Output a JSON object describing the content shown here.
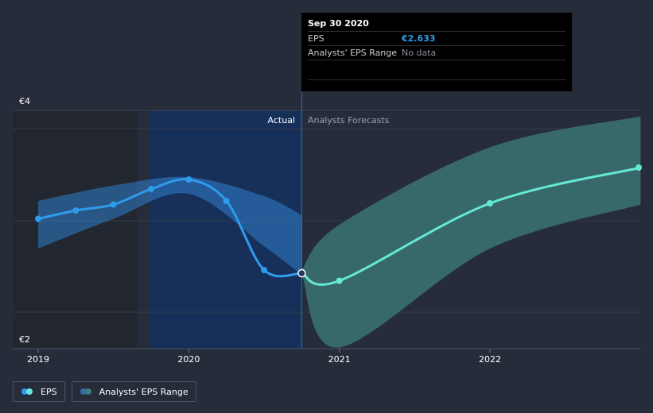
{
  "tooltip": {
    "date": "Sep 30 2020",
    "rows": [
      {
        "label": "EPS",
        "value": "€2.633"
      },
      {
        "label": "Analysts' EPS Range",
        "value": "No data"
      }
    ]
  },
  "section_labels": {
    "actual": "Actual",
    "forecast": "Analysts Forecasts"
  },
  "legend": {
    "eps_label": "EPS",
    "range_label": "Analysts' EPS Range"
  },
  "colors": {
    "background": "#262c3a",
    "eps_line": "#2f9bea",
    "forecast_line": "#66e8d6",
    "actual_band": "#2f7fcc",
    "forecast_band": "#3e7d7b",
    "highlight_region": "#17305a"
  },
  "chart_data": {
    "type": "line",
    "y_ticks": [
      {
        "value": 4,
        "label": "€4"
      },
      {
        "value": 2,
        "label": "€2"
      }
    ],
    "x_ticks": [
      {
        "value": 2019,
        "label": "2019"
      },
      {
        "value": 2020,
        "label": "2020"
      },
      {
        "value": 2021,
        "label": "2021"
      },
      {
        "value": 2022,
        "label": "2022"
      }
    ],
    "xlim": [
      2019,
      2023.0
    ],
    "ylim": [
      2.0,
      4.0
    ],
    "eps_actual": [
      {
        "x": 2019.0,
        "y": 3.09
      },
      {
        "x": 2019.25,
        "y": 3.16
      },
      {
        "x": 2019.5,
        "y": 3.21
      },
      {
        "x": 2019.75,
        "y": 3.34
      },
      {
        "x": 2020.0,
        "y": 3.42
      },
      {
        "x": 2020.25,
        "y": 3.24
      },
      {
        "x": 2020.5,
        "y": 2.66
      },
      {
        "x": 2020.75,
        "y": 2.633
      }
    ],
    "eps_forecast": [
      {
        "x": 2020.75,
        "y": 2.633
      },
      {
        "x": 2021.0,
        "y": 2.57
      },
      {
        "x": 2022.0,
        "y": 3.22
      },
      {
        "x": 2023.0,
        "y": 3.52
      }
    ],
    "actual_range": {
      "x": [
        2019.0,
        2019.5,
        2020.0,
        2020.5,
        2020.75
      ],
      "upper": [
        3.24,
        3.37,
        3.44,
        3.28,
        3.12
      ],
      "lower": [
        2.84,
        3.09,
        3.3,
        2.86,
        2.62
      ]
    },
    "forecast_range": {
      "x": [
        2020.75,
        2021.0,
        2022.0,
        2023.0
      ],
      "upper": [
        2.66,
        3.04,
        3.69,
        3.95
      ],
      "lower": [
        2.62,
        2.01,
        2.84,
        3.21
      ]
    },
    "actual_cutoff": 2020.75
  }
}
